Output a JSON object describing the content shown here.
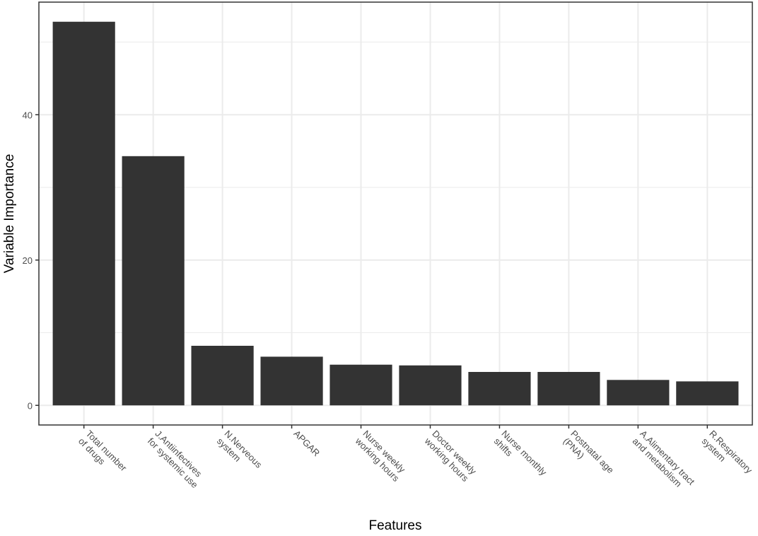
{
  "chart_data": {
    "type": "bar",
    "title": "",
    "xlabel": "Features",
    "ylabel": "Variable Importance",
    "categories": [
      [
        "Total number",
        "of drugs"
      ],
      [
        "J.Antiinfectives",
        "for systemic use"
      ],
      [
        "N.Nerveous",
        "system"
      ],
      [
        "APGAR"
      ],
      [
        "Nurse weekly",
        "working hours"
      ],
      [
        "Doctor weekly",
        "working hours"
      ],
      [
        "Nurse monthly",
        "shifts"
      ],
      [
        "Postnatal age",
        "(PNA)"
      ],
      [
        "A.Alimentary tract",
        "and metabolism"
      ],
      [
        "R.Respiratory",
        "system"
      ]
    ],
    "values": [
      52.8,
      34.3,
      8.2,
      6.7,
      5.6,
      5.5,
      4.6,
      4.6,
      3.5,
      3.3
    ],
    "ylim": [
      -2.7,
      55.5
    ],
    "yticks": [
      0,
      20,
      40
    ],
    "grid": true,
    "bar_color": "#333333",
    "grid_color": "#ebebeb"
  }
}
